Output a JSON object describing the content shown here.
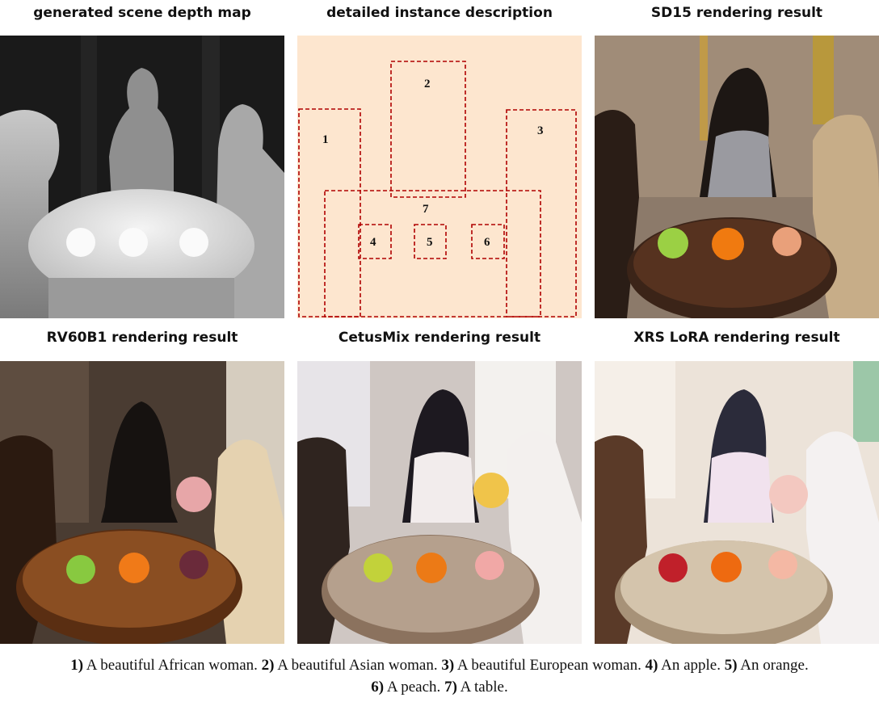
{
  "panels": [
    {
      "title": "generated scene depth map"
    },
    {
      "title": "detailed instance description"
    },
    {
      "title": "SD15 rendering result"
    },
    {
      "title": "RV60B1 rendering result"
    },
    {
      "title": "CetusMix rendering result"
    },
    {
      "title": "XRS LoRA rendering result"
    }
  ],
  "boxes": [
    {
      "label": "1"
    },
    {
      "label": "2"
    },
    {
      "label": "3"
    },
    {
      "label": "4"
    },
    {
      "label": "5"
    },
    {
      "label": "6"
    },
    {
      "label": "7"
    }
  ],
  "caption": [
    {
      "num": "1)",
      "text": " A beautiful African woman. "
    },
    {
      "num": "2)",
      "text": " A beautiful Asian woman. "
    },
    {
      "num": "3)",
      "text": " A beautiful European woman. "
    },
    {
      "num": "4)",
      "text": " An apple. "
    },
    {
      "num": "5)",
      "text": " An orange."
    },
    {
      "num": "6)",
      "text": " A peach. "
    },
    {
      "num": "7)",
      "text": " A table."
    }
  ],
  "colors": {
    "box_stroke": "#b00000",
    "description_bg": "#fde6cf"
  }
}
